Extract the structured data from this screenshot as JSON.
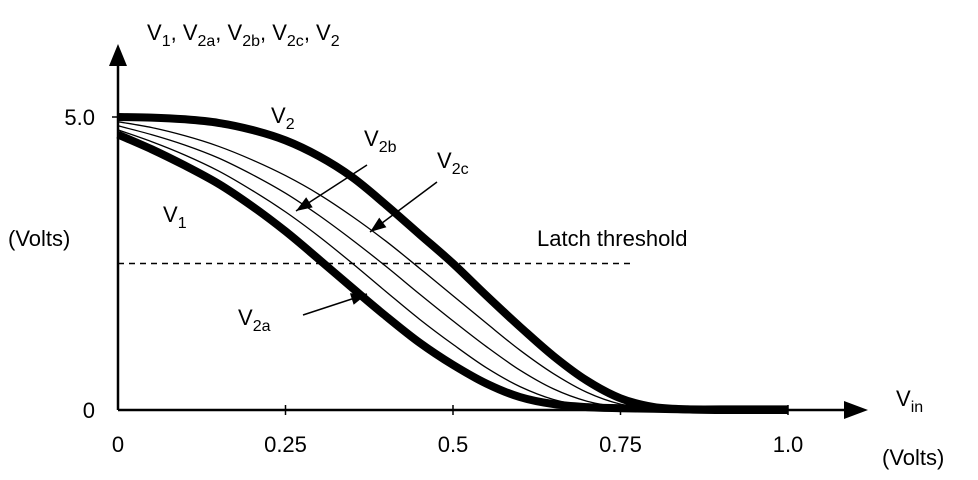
{
  "chart_data": {
    "type": "line",
    "y_axis_title": {
      "parts": [
        [
          "V",
          "1"
        ],
        [
          "V",
          "2a"
        ],
        [
          "V",
          "2b"
        ],
        [
          "V",
          "2c"
        ],
        [
          "V",
          "2"
        ]
      ],
      "sep": ", "
    },
    "y_unit": "(Volts)",
    "x_axis_title": {
      "main": "V",
      "sub": "in"
    },
    "x_unit": "(Volts)",
    "x_ticks": [
      "0",
      "0.25",
      "0.5",
      "0.75",
      "1.0"
    ],
    "y_ticks": [
      "0",
      "5.0"
    ],
    "xlim": [
      0,
      1.0
    ],
    "ylim": [
      0,
      5.0
    ],
    "threshold": {
      "label": "Latch threshold",
      "value": 2.5,
      "x_range": [
        0,
        0.77
      ]
    },
    "series": [
      {
        "name": "V1",
        "label_main": "V",
        "label_sub": "1",
        "style": "thick",
        "x": [
          0,
          0.05,
          0.1,
          0.15,
          0.2,
          0.25,
          0.3,
          0.35,
          0.4,
          0.45,
          0.5,
          0.55,
          0.6,
          0.65,
          0.7,
          0.75,
          0.8,
          0.85,
          0.9,
          0.95,
          1.0
        ],
        "y": [
          4.7,
          4.45,
          4.17,
          3.86,
          3.48,
          3.05,
          2.57,
          2.08,
          1.6,
          1.15,
          0.77,
          0.45,
          0.22,
          0.1,
          0.05,
          0.03,
          0.02,
          0.01,
          0.01,
          0.01,
          0.01
        ]
      },
      {
        "name": "V2a",
        "label_main": "V",
        "label_sub": "2a",
        "style": "thin",
        "x": [
          0,
          0.05,
          0.1,
          0.15,
          0.2,
          0.25,
          0.3,
          0.35,
          0.4,
          0.45,
          0.5,
          0.55,
          0.6,
          0.65,
          0.7,
          0.75,
          0.8,
          0.85,
          0.9,
          0.95,
          1.0
        ],
        "y": [
          4.78,
          4.58,
          4.35,
          4.08,
          3.75,
          3.38,
          2.96,
          2.5,
          2.02,
          1.55,
          1.12,
          0.72,
          0.4,
          0.18,
          0.07,
          0.03,
          0.02,
          0.01,
          0.01,
          0.01,
          0.01
        ]
      },
      {
        "name": "V2b",
        "label_main": "V",
        "label_sub": "2b",
        "style": "thin",
        "x": [
          0,
          0.05,
          0.1,
          0.15,
          0.2,
          0.25,
          0.3,
          0.35,
          0.4,
          0.45,
          0.5,
          0.55,
          0.6,
          0.65,
          0.7,
          0.75,
          0.8,
          0.85,
          0.9,
          0.95,
          1.0
        ],
        "y": [
          4.85,
          4.7,
          4.52,
          4.3,
          4.02,
          3.7,
          3.32,
          2.9,
          2.45,
          1.98,
          1.52,
          1.08,
          0.68,
          0.36,
          0.15,
          0.05,
          0.02,
          0.01,
          0.01,
          0.01,
          0.01
        ]
      },
      {
        "name": "V2c",
        "label_main": "V",
        "label_sub": "2c",
        "style": "thin",
        "x": [
          0,
          0.05,
          0.1,
          0.15,
          0.2,
          0.25,
          0.3,
          0.35,
          0.4,
          0.45,
          0.5,
          0.55,
          0.6,
          0.65,
          0.7,
          0.75,
          0.8,
          0.85,
          0.9,
          0.95,
          1.0
        ],
        "y": [
          4.92,
          4.82,
          4.68,
          4.5,
          4.27,
          4.0,
          3.68,
          3.3,
          2.88,
          2.42,
          1.95,
          1.48,
          1.02,
          0.62,
          0.3,
          0.1,
          0.03,
          0.01,
          0.01,
          0.01,
          0.01
        ]
      },
      {
        "name": "V2",
        "label_main": "V",
        "label_sub": "2",
        "style": "thick",
        "x": [
          0,
          0.05,
          0.1,
          0.15,
          0.2,
          0.25,
          0.3,
          0.35,
          0.4,
          0.45,
          0.5,
          0.55,
          0.6,
          0.65,
          0.7,
          0.75,
          0.8,
          0.85,
          0.9,
          0.95,
          1.0
        ],
        "y": [
          5.0,
          4.99,
          4.96,
          4.9,
          4.78,
          4.6,
          4.33,
          3.97,
          3.5,
          3.0,
          2.5,
          1.95,
          1.42,
          0.92,
          0.5,
          0.2,
          0.05,
          0.01,
          0.0,
          0.0,
          0.0
        ]
      }
    ]
  }
}
